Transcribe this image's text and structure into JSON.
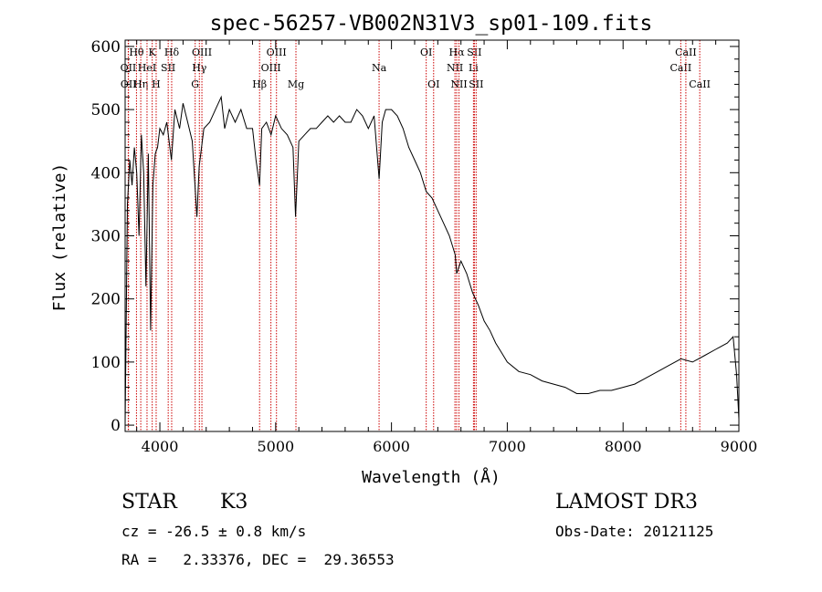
{
  "chart_data": {
    "type": "line",
    "title": "spec-56257-VB002N31V3_sp01-109.fits",
    "xlabel": "Wavelength (Å)",
    "ylabel": "Flux (relative)",
    "xlim": [
      3700,
      9000
    ],
    "ylim": [
      -10,
      610
    ],
    "xticks": [
      4000,
      5000,
      6000,
      7000,
      8000,
      9000
    ],
    "yticks": [
      0,
      100,
      200,
      300,
      400,
      500,
      600
    ],
    "grid": false,
    "series": [
      {
        "name": "flux",
        "x": [
          3700,
          3720,
          3740,
          3760,
          3780,
          3800,
          3820,
          3840,
          3860,
          3880,
          3900,
          3920,
          3940,
          3960,
          3980,
          4000,
          4030,
          4060,
          4100,
          4130,
          4170,
          4200,
          4240,
          4280,
          4320,
          4340,
          4380,
          4430,
          4480,
          4530,
          4560,
          4600,
          4650,
          4700,
          4750,
          4800,
          4830,
          4861,
          4880,
          4920,
          4960,
          5000,
          5050,
          5100,
          5150,
          5172,
          5200,
          5250,
          5300,
          5350,
          5400,
          5450,
          5500,
          5550,
          5600,
          5650,
          5700,
          5750,
          5800,
          5850,
          5893,
          5920,
          5950,
          6000,
          6050,
          6100,
          6150,
          6200,
          6250,
          6300,
          6350,
          6400,
          6450,
          6500,
          6550,
          6563,
          6600,
          6650,
          6700,
          6750,
          6800,
          6850,
          6900,
          6950,
          7000,
          7100,
          7200,
          7300,
          7400,
          7500,
          7600,
          7700,
          7800,
          7900,
          8000,
          8100,
          8200,
          8300,
          8400,
          8500,
          8600,
          8700,
          8800,
          8900,
          8950,
          8980,
          9000
        ],
        "values": [
          0,
          350,
          420,
          380,
          440,
          400,
          300,
          460,
          400,
          220,
          430,
          150,
          380,
          430,
          440,
          470,
          460,
          480,
          420,
          500,
          470,
          510,
          480,
          450,
          330,
          410,
          470,
          480,
          500,
          520,
          470,
          500,
          480,
          500,
          470,
          470,
          420,
          380,
          470,
          480,
          460,
          490,
          470,
          460,
          440,
          330,
          450,
          460,
          470,
          470,
          480,
          490,
          480,
          490,
          480,
          480,
          500,
          490,
          470,
          490,
          390,
          480,
          500,
          500,
          490,
          470,
          440,
          420,
          400,
          370,
          360,
          340,
          320,
          300,
          270,
          240,
          260,
          240,
          210,
          190,
          165,
          150,
          130,
          115,
          100,
          85,
          80,
          70,
          65,
          60,
          50,
          50,
          55,
          55,
          60,
          65,
          75,
          85,
          95,
          105,
          100,
          110,
          120,
          130,
          140,
          80,
          10
        ]
      }
    ],
    "lines": [
      {
        "label": "OII",
        "wavelength": 3727,
        "row": 1
      },
      {
        "label": "OII",
        "wavelength": 3729,
        "row": 2
      },
      {
        "label": "Hθ",
        "wavelength": 3798,
        "row": 0
      },
      {
        "label": "Hη",
        "wavelength": 3835,
        "row": 2
      },
      {
        "label": "HeI",
        "wavelength": 3889,
        "row": 1
      },
      {
        "label": "K",
        "wavelength": 3934,
        "row": 0
      },
      {
        "label": "H",
        "wavelength": 3968,
        "row": 2
      },
      {
        "label": "SII",
        "wavelength": 4072,
        "row": 1
      },
      {
        "label": "Hδ",
        "wavelength": 4102,
        "row": 0
      },
      {
        "label": "G",
        "wavelength": 4305,
        "row": 2
      },
      {
        "label": "Hγ",
        "wavelength": 4341,
        "row": 1
      },
      {
        "label": "OIII",
        "wavelength": 4363,
        "row": 0
      },
      {
        "label": "Hβ",
        "wavelength": 4861,
        "row": 2
      },
      {
        "label": "OIII",
        "wavelength": 4959,
        "row": 1
      },
      {
        "label": "OIII",
        "wavelength": 5007,
        "row": 0
      },
      {
        "label": "Mg",
        "wavelength": 5175,
        "row": 2
      },
      {
        "label": "Na",
        "wavelength": 5893,
        "row": 1
      },
      {
        "label": "OI",
        "wavelength": 6300,
        "row": 0
      },
      {
        "label": "OI",
        "wavelength": 6364,
        "row": 2
      },
      {
        "label": "NII",
        "wavelength": 6548,
        "row": 1
      },
      {
        "label": "Hα",
        "wavelength": 6563,
        "row": 0
      },
      {
        "label": "NII",
        "wavelength": 6583,
        "row": 2
      },
      {
        "label": "Li",
        "wavelength": 6708,
        "row": 1
      },
      {
        "label": "SII",
        "wavelength": 6716,
        "row": 0
      },
      {
        "label": "SII",
        "wavelength": 6731,
        "row": 2
      },
      {
        "label": "CaII",
        "wavelength": 8498,
        "row": 1
      },
      {
        "label": "CaII",
        "wavelength": 8542,
        "row": 0
      },
      {
        "label": "CaII",
        "wavelength": 8662,
        "row": 2
      }
    ]
  },
  "info": {
    "object_class": "STAR",
    "subclass": "K3",
    "survey": "LAMOST DR3",
    "redshift": "cz = -26.5 ± 0.8 km/s",
    "obs_date": "Obs-Date: 20121125",
    "coords": "RA =   2.33376, DEC =  29.36553"
  },
  "colors": {
    "axis": "#000000",
    "spectrum": "#000000",
    "line_marker": "#cc0000"
  }
}
